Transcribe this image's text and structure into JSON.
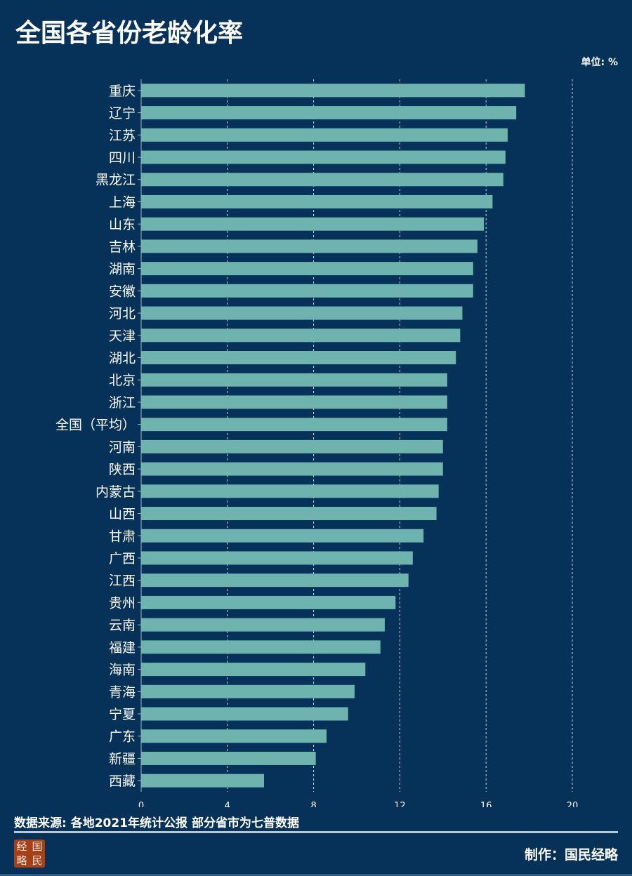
{
  "title": "全国各省份老龄化率",
  "unit_label": "单位: %",
  "source": "数据来源: 各地2021年统计公报  部分省市为七普数据",
  "credit": "制作：国民经略",
  "logo_text": "经国略民",
  "colors": {
    "background": "#06325a",
    "bar": "#6fb3ae",
    "grid": "#ffffff"
  },
  "chart_data": {
    "type": "bar",
    "orientation": "horizontal",
    "categories": [
      "重庆",
      "辽宁",
      "江苏",
      "四川",
      "黑龙江",
      "上海",
      "山东",
      "吉林",
      "湖南",
      "安徽",
      "河北",
      "天津",
      "湖北",
      "北京",
      "浙江",
      "全国（平均）",
      "河南",
      "陕西",
      "内蒙古",
      "山西",
      "甘肃",
      "广西",
      "江西",
      "贵州",
      "云南",
      "福建",
      "海南",
      "青海",
      "宁夏",
      "广东",
      "新疆",
      "西藏"
    ],
    "values": [
      17.8,
      17.4,
      17.0,
      16.9,
      16.8,
      16.3,
      15.9,
      15.6,
      15.4,
      15.4,
      14.9,
      14.8,
      14.6,
      14.2,
      14.2,
      14.2,
      14.0,
      14.0,
      13.8,
      13.7,
      13.1,
      12.6,
      12.4,
      11.8,
      11.3,
      11.1,
      10.4,
      9.9,
      9.6,
      8.6,
      8.1,
      5.7
    ],
    "xlim": [
      0,
      20
    ],
    "xticks": [
      0,
      4,
      8,
      12,
      16,
      20
    ],
    "grid": "vertical dashed",
    "title": "全国各省份老龄化率",
    "xlabel": "",
    "ylabel": ""
  }
}
